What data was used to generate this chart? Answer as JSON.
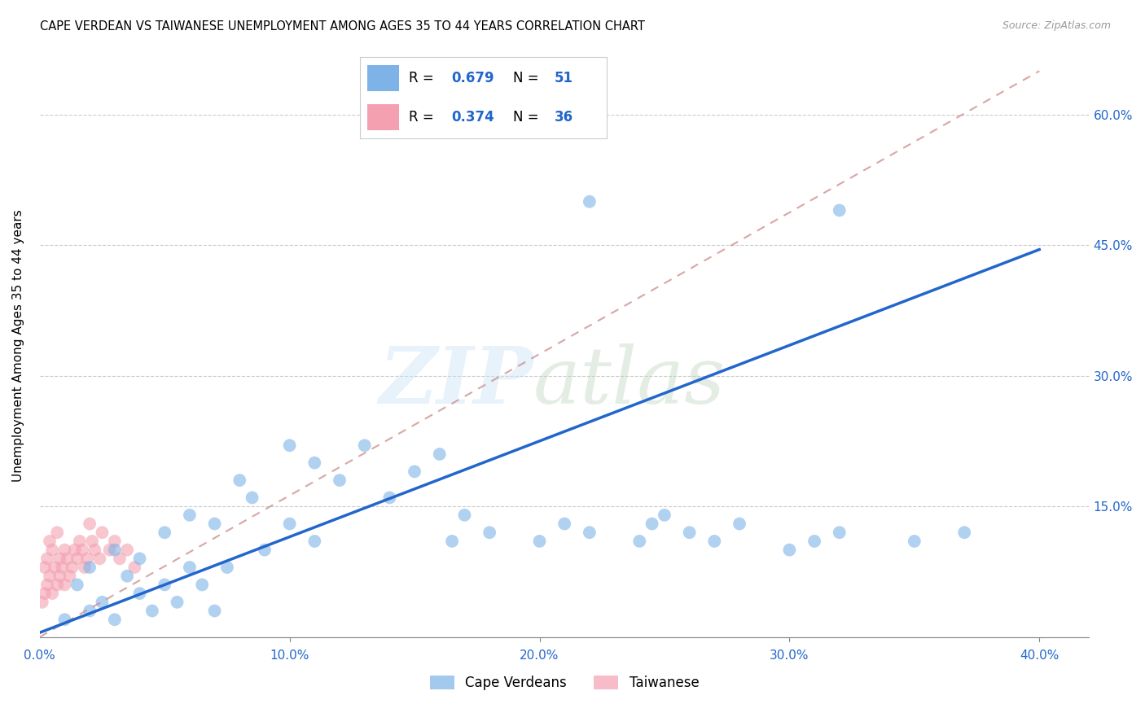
{
  "title": "CAPE VERDEAN VS TAIWANESE UNEMPLOYMENT AMONG AGES 35 TO 44 YEARS CORRELATION CHART",
  "source": "Source: ZipAtlas.com",
  "ylabel": "Unemployment Among Ages 35 to 44 years",
  "xlim": [
    0.0,
    0.42
  ],
  "ylim": [
    -0.01,
    0.68
  ],
  "xticks": [
    0.0,
    0.1,
    0.2,
    0.3,
    0.4
  ],
  "yticks": [
    0.0,
    0.15,
    0.3,
    0.45,
    0.6
  ],
  "tick_labels_x": [
    "0.0%",
    "10.0%",
    "20.0%",
    "30.0%",
    "40.0%"
  ],
  "tick_labels_y_right": [
    "",
    "15.0%",
    "30.0%",
    "45.0%",
    "60.0%"
  ],
  "blue_color": "#7EB3E8",
  "pink_color": "#F4A0B0",
  "blue_line_color": "#2266CC",
  "pink_line_color": "#CC8888",
  "text_blue_color": "#2266CC",
  "R_blue": 0.679,
  "N_blue": 51,
  "R_pink": 0.374,
  "N_pink": 36,
  "legend_label_blue": "Cape Verdeans",
  "legend_label_pink": "Taiwanese",
  "blue_line_x0": 0.0,
  "blue_line_y0": 0.005,
  "blue_line_x1": 0.4,
  "blue_line_y1": 0.445,
  "pink_line_x0": 0.0,
  "pink_line_y0": 0.0,
  "pink_line_x1": 0.4,
  "pink_line_y1": 0.65,
  "blue_scatter_x": [
    0.01,
    0.015,
    0.02,
    0.02,
    0.025,
    0.03,
    0.03,
    0.035,
    0.04,
    0.04,
    0.045,
    0.05,
    0.05,
    0.055,
    0.06,
    0.06,
    0.065,
    0.07,
    0.07,
    0.075,
    0.08,
    0.085,
    0.09,
    0.1,
    0.1,
    0.11,
    0.11,
    0.12,
    0.13,
    0.14,
    0.15,
    0.16,
    0.165,
    0.17,
    0.18,
    0.2,
    0.21,
    0.22,
    0.24,
    0.245,
    0.25,
    0.26,
    0.27,
    0.28,
    0.3,
    0.31,
    0.32,
    0.35,
    0.37,
    0.22,
    0.32
  ],
  "blue_scatter_y": [
    0.02,
    0.06,
    0.03,
    0.08,
    0.04,
    0.02,
    0.1,
    0.07,
    0.05,
    0.09,
    0.03,
    0.06,
    0.12,
    0.04,
    0.08,
    0.14,
    0.06,
    0.03,
    0.13,
    0.08,
    0.18,
    0.16,
    0.1,
    0.22,
    0.13,
    0.2,
    0.11,
    0.18,
    0.22,
    0.16,
    0.19,
    0.21,
    0.11,
    0.14,
    0.12,
    0.11,
    0.13,
    0.12,
    0.11,
    0.13,
    0.14,
    0.12,
    0.11,
    0.13,
    0.1,
    0.11,
    0.12,
    0.11,
    0.12,
    0.5,
    0.49
  ],
  "pink_scatter_x": [
    0.001,
    0.002,
    0.002,
    0.003,
    0.003,
    0.004,
    0.004,
    0.005,
    0.005,
    0.006,
    0.007,
    0.007,
    0.008,
    0.008,
    0.009,
    0.01,
    0.01,
    0.011,
    0.012,
    0.013,
    0.014,
    0.015,
    0.016,
    0.017,
    0.018,
    0.019,
    0.02,
    0.021,
    0.022,
    0.024,
    0.025,
    0.028,
    0.03,
    0.032,
    0.035,
    0.038
  ],
  "pink_scatter_y": [
    0.04,
    0.05,
    0.08,
    0.06,
    0.09,
    0.07,
    0.11,
    0.05,
    0.1,
    0.08,
    0.06,
    0.12,
    0.07,
    0.09,
    0.08,
    0.06,
    0.1,
    0.09,
    0.07,
    0.08,
    0.1,
    0.09,
    0.11,
    0.1,
    0.08,
    0.09,
    0.13,
    0.11,
    0.1,
    0.09,
    0.12,
    0.1,
    0.11,
    0.09,
    0.1,
    0.08
  ]
}
